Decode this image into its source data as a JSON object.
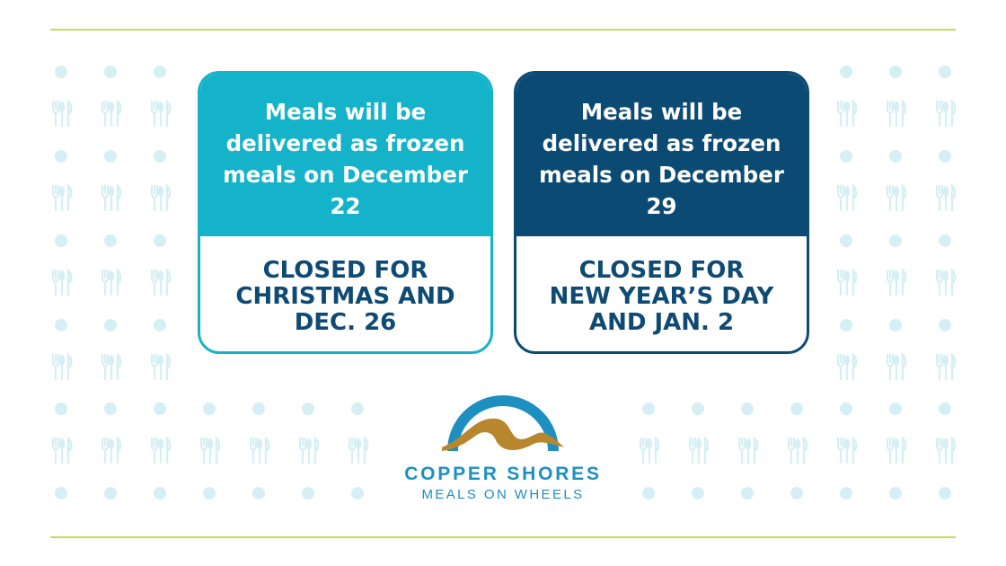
{
  "colors": {
    "teal": "#14b3c9",
    "navy": "#0b4a73",
    "rule_green": "#c5dc5a",
    "pattern": "#d6eff5",
    "gold": "#b8862c",
    "brand_blue": "#1d8fc1"
  },
  "cards": [
    {
      "heading_lines": [
        "Meals will be",
        "delivered as frozen",
        "meals on December 22"
      ],
      "closure_lines": [
        "CLOSED FOR",
        "CHRISTMAS AND",
        "DEC. 26"
      ]
    },
    {
      "heading_lines": [
        "Meals will be",
        "delivered as frozen",
        "meals on December 29"
      ],
      "closure_lines": [
        "CLOSED FOR",
        "NEW YEAR’S DAY",
        "AND JAN. 2"
      ]
    }
  ],
  "logo": {
    "name": "COPPER SHORES",
    "tagline": "MEALS ON WHEELS"
  },
  "pattern_icons": [
    "plate-icon",
    "fork-knife-icon"
  ]
}
